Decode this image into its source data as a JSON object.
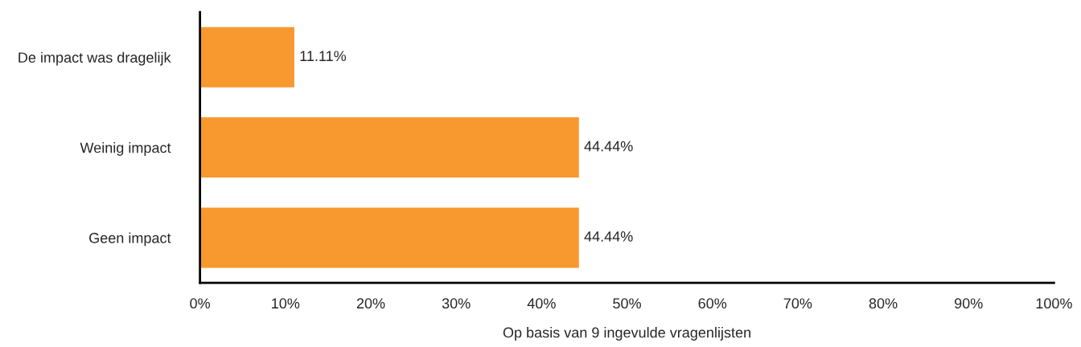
{
  "chart_data": {
    "type": "bar",
    "orientation": "horizontal",
    "categories": [
      "De impact was dragelijk",
      "Weinig impact",
      "Geen impact"
    ],
    "values": [
      11.11,
      44.44,
      44.44
    ],
    "value_labels": [
      "11.11%",
      "44.44%",
      "44.44%"
    ],
    "color": "#f7992f",
    "xlim": [
      0,
      100
    ],
    "xticks": [
      {
        "value": 0,
        "label": "0%"
      },
      {
        "value": 10,
        "label": "10%"
      },
      {
        "value": 20,
        "label": "20%"
      },
      {
        "value": 30,
        "label": "30%"
      },
      {
        "value": 40,
        "label": "40%"
      },
      {
        "value": 50,
        "label": "50%"
      },
      {
        "value": 60,
        "label": "60%"
      },
      {
        "value": 70,
        "label": "70%"
      },
      {
        "value": 80,
        "label": "80%"
      },
      {
        "value": 90,
        "label": "90%"
      },
      {
        "value": 100,
        "label": "100%"
      }
    ],
    "xlabel": "Op basis van 9 ingevulde vragenlijsten",
    "grid": false,
    "legend": false
  }
}
